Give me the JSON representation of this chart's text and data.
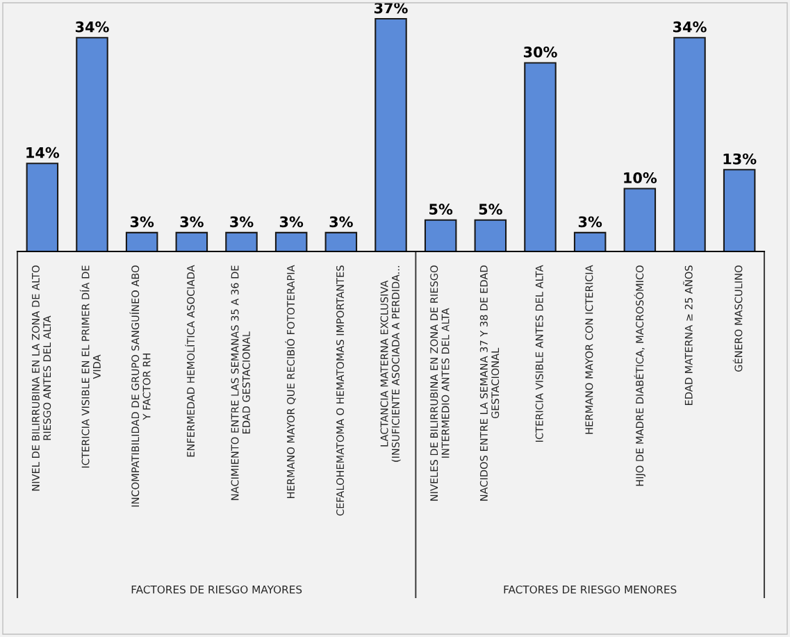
{
  "chart_data": {
    "type": "bar",
    "categories": [
      "NIVEL DE BILIRRUBINA EN LA ZONA DE ALTO RIESGO ANTES DEL ALTA",
      "ICTERICIA VISIBLE EN EL PRIMER DÍA DE VIDA",
      "INCOMPATIBILIDAD DE GRUPO SANGUÍNEO ABO Y FACTOR RH",
      "ENFERMEDAD HEMOLÍTICA ASOCIADA",
      "NACIMIENTO ENTRE LAS SEMANAS 35 A 36 DE EDAD GESTACIONAL",
      "HERMANO MAYOR QUE RECIBIÓ FOTOTERAPIA",
      "CEFALOHEMATOMA O HEMATOMAS IMPORTANTES",
      "LACTANCIA MATERNA EXCLUSIVA (INSUFICIENTE ASOCIADA A PERDIDA...",
      "NIVELES DE BILIRRUBINA EN ZONA DE RIESGO INTERMEDIO ANTES DEL ALTA",
      "NACIDOS ENTRE LA SEMANA 37 Y 38 DE EDAD GESTACIONAL",
      "ICTERICIA VISIBLE ANTES DEL ALTA",
      "HERMANO MAYOR CON ICTERICIA",
      "HIJO DE MADRE DIABÉTICA, MACROSÓMICO",
      "EDAD MATERNA ≥ 25 AÑOS",
      "GÉNERO MASCULINO"
    ],
    "values": [
      14,
      34,
      3,
      3,
      3,
      3,
      3,
      37,
      5,
      5,
      30,
      3,
      10,
      34,
      13
    ],
    "value_labels": [
      "14%",
      "34%",
      "3%",
      "3%",
      "3%",
      "3%",
      "3%",
      "37%",
      "5%",
      "5%",
      "30%",
      "3%",
      "10%",
      "34%",
      "13%"
    ],
    "color": "#5b8bd9",
    "annotations": [
      "FACTORES DE RIESGO MAYORES",
      "FACTORES DE RIESGO MENORES"
    ]
  }
}
